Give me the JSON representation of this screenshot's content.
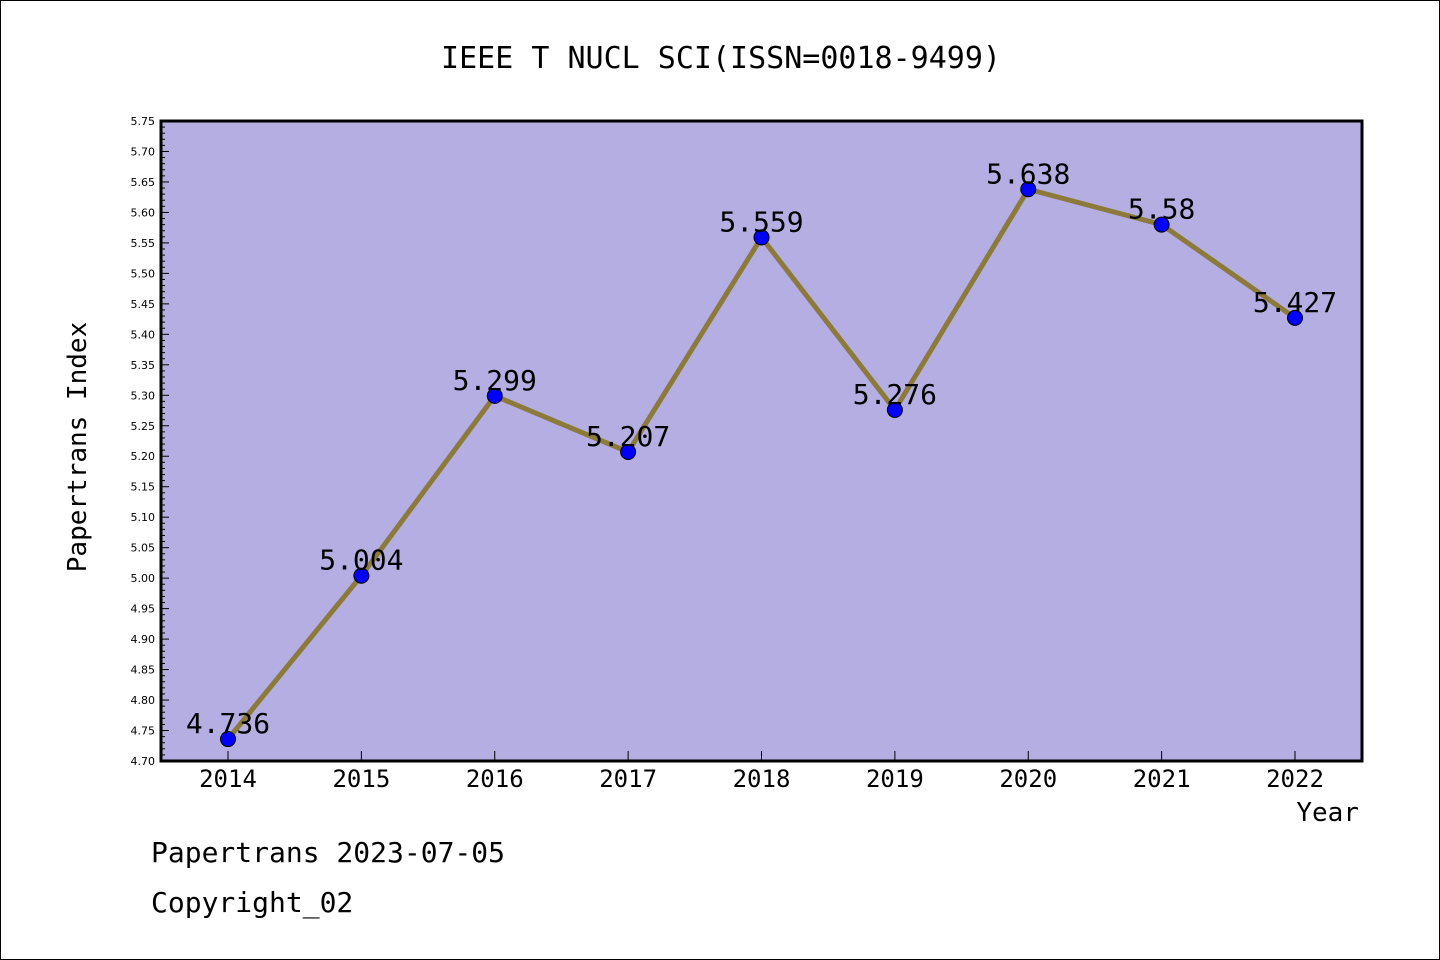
{
  "chart_data": {
    "type": "line",
    "title": "IEEE T NUCL SCI(ISSN=0018-9499)",
    "xlabel": "Year",
    "ylabel": "Papertrans Index",
    "categories": [
      "2014",
      "2015",
      "2016",
      "2017",
      "2018",
      "2019",
      "2020",
      "2021",
      "2022"
    ],
    "values": [
      4.736,
      5.004,
      5.299,
      5.207,
      5.559,
      5.276,
      5.638,
      5.58,
      5.427
    ],
    "value_labels": [
      "4.736",
      "5.004",
      "5.299",
      "5.207",
      "5.559",
      "5.276",
      "5.638",
      "5.58",
      "5.427"
    ],
    "ylim": [
      4.7,
      5.75
    ],
    "yticks": [
      "4.70",
      "4.75",
      "4.80",
      "4.85",
      "4.90",
      "4.95",
      "5.00",
      "5.05",
      "5.10",
      "5.15",
      "5.20",
      "5.25",
      "5.30",
      "5.35",
      "5.40",
      "5.45",
      "5.50",
      "5.55",
      "5.60",
      "5.65",
      "5.70",
      "5.75"
    ],
    "grid": false,
    "colors": {
      "plot_background": "#b5aee2",
      "line": "#8b7a3a",
      "marker": "#0000ff"
    }
  },
  "footer": {
    "line1": "Papertrans 2023-07-05",
    "line2": "Copyright_02"
  }
}
